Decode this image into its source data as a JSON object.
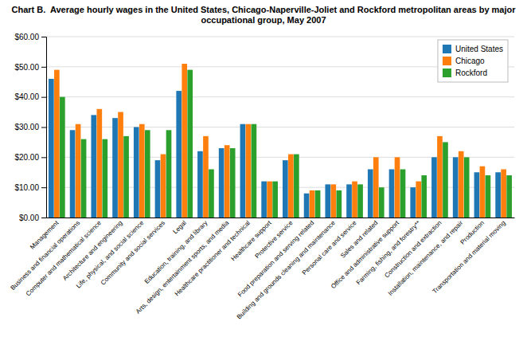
{
  "chart_data": {
    "type": "bar",
    "title": "Chart B.  Average hourly wages in the United States, Chicago-Naperville-Joliet and Rockford metropolitan areas by major occupational group, May 2007",
    "categories": [
      "Management",
      "Business and financial operations",
      "Computer and mathematical science",
      "Architecture and engineering",
      "Life, physical, and social science",
      "Community and social services",
      "Legal",
      "Education, training, and library",
      "Arts, design, entertainment sports, and media",
      "Healthcare practitioner and technical",
      "Healthcare support",
      "Protective service",
      "Food preparation and serving related",
      "Building and grounds cleaning and maintenance",
      "Personal care and service",
      "Sales and related",
      "Office and administrative support",
      "Farming, fishing, and forestry**",
      "Construction and extraction",
      "Installation, maintenance, and repair",
      "Production",
      "Transportation and material moving"
    ],
    "series": [
      {
        "name": "United States",
        "values": [
          46,
          29,
          34,
          33,
          30,
          19,
          42,
          22,
          23,
          31,
          12,
          19,
          8,
          11,
          11,
          16,
          16,
          10,
          20,
          20,
          15,
          15
        ]
      },
      {
        "name": "Chicago",
        "values": [
          49,
          31,
          36,
          35,
          31,
          21,
          51,
          27,
          24,
          31,
          12,
          21,
          9,
          11,
          12,
          20,
          20,
          12,
          27,
          22,
          17,
          16
        ]
      },
      {
        "name": "Rockford",
        "values": [
          40,
          26,
          26,
          27,
          29,
          29,
          49,
          16,
          23,
          31,
          12,
          21,
          9,
          9,
          11,
          10,
          16,
          14,
          25,
          20,
          14,
          14
        ]
      }
    ],
    "ylim": [
      0,
      60
    ],
    "yticks": [
      {
        "value": 0,
        "label": "$0.00"
      },
      {
        "value": 10,
        "label": "$10.00"
      },
      {
        "value": 20,
        "label": "$20.00"
      },
      {
        "value": 30,
        "label": "$30.00"
      },
      {
        "value": 40,
        "label": "$40.00"
      },
      {
        "value": 50,
        "label": "$50.00"
      },
      {
        "value": 60,
        "label": "$60.00"
      }
    ],
    "grid": true,
    "legend": "top-right"
  }
}
